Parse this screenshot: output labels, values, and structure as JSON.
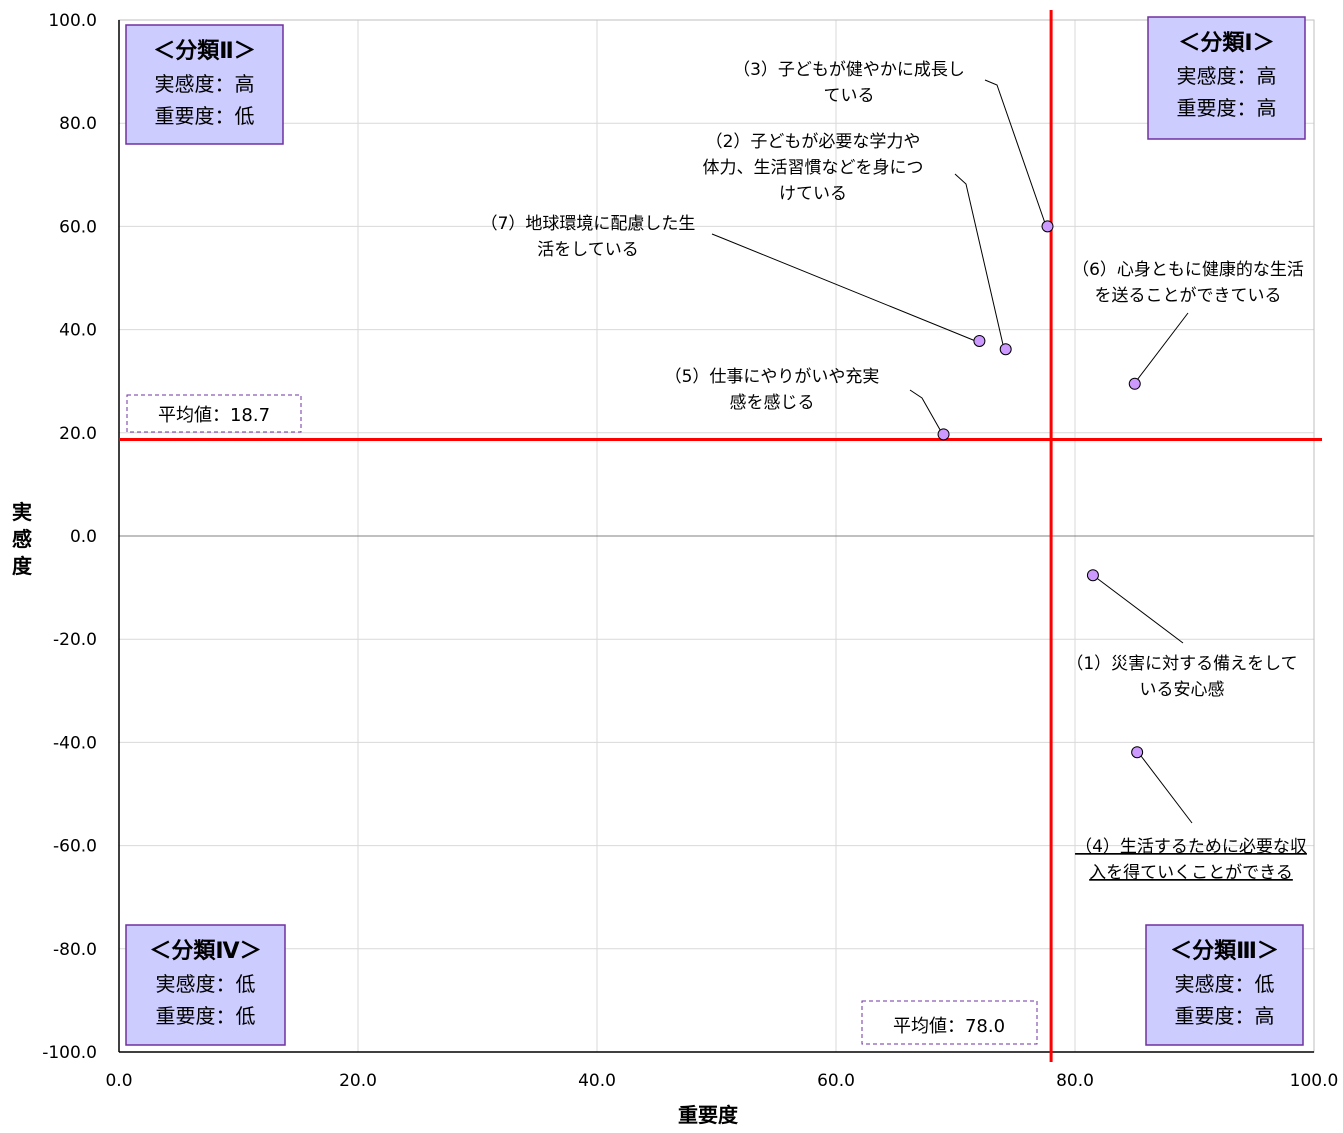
{
  "chart_data": {
    "type": "scatter",
    "xlabel": "重要度",
    "ylabel": "実感度",
    "xlim": [
      0,
      100
    ],
    "ylim": [
      -100,
      100
    ],
    "x_ticks": [
      "0.0",
      "20.0",
      "40.0",
      "60.0",
      "80.0",
      "100.0"
    ],
    "y_ticks": [
      "100.0",
      "80.0",
      "60.0",
      "40.0",
      "20.0",
      "0.0",
      "-20.0",
      "-40.0",
      "-60.0",
      "-80.0",
      "-100.0"
    ],
    "grid": true,
    "marker_color": "#cc99ff",
    "average_line_color": "#ff0000",
    "averages": {
      "x": 78.0,
      "y": 18.7,
      "x_label": "平均値：78.0",
      "y_label": "平均値：18.7"
    },
    "points": [
      {
        "x": 81.5,
        "y": -7.6,
        "label": [
          "（1）災害に対する備えをして",
          "いる安心感"
        ]
      },
      {
        "x": 74.2,
        "y": 36.2,
        "label": [
          "（2）子どもが必要な学力や",
          "体力、生活習慣などを身につ",
          "けている"
        ]
      },
      {
        "x": 77.7,
        "y": 60.0,
        "label": [
          "（3）子どもが健やかに成長し",
          "ている"
        ]
      },
      {
        "x": 85.2,
        "y": -41.9,
        "label": [
          "（4）生活するために必要な収",
          "入を得ていくことができる"
        ]
      },
      {
        "x": 69.0,
        "y": 19.7,
        "label": [
          "（5）仕事にやりがいや充実",
          "感を感じる"
        ]
      },
      {
        "x": 85.0,
        "y": 29.5,
        "label": [
          "（6）心身ともに健康的な生活",
          "を送ることができている"
        ]
      },
      {
        "x": 72.0,
        "y": 37.8,
        "label": [
          "（7）地球環境に配慮した生",
          "活をしている"
        ]
      }
    ],
    "quadrants": [
      {
        "id": "II",
        "title": "＜分類Ⅱ＞",
        "lines": [
          "実感度：高",
          "重要度：低"
        ]
      },
      {
        "id": "I",
        "title": "＜分類Ⅰ＞",
        "lines": [
          "実感度：高",
          "重要度：高"
        ]
      },
      {
        "id": "IV",
        "title": "＜分類Ⅳ＞",
        "lines": [
          "実感度：低",
          "重要度：低"
        ]
      },
      {
        "id": "III",
        "title": "＜分類Ⅲ＞",
        "lines": [
          "実感度：低",
          "重要度：高"
        ]
      }
    ],
    "quadrant_box_color": "#ccccff"
  }
}
